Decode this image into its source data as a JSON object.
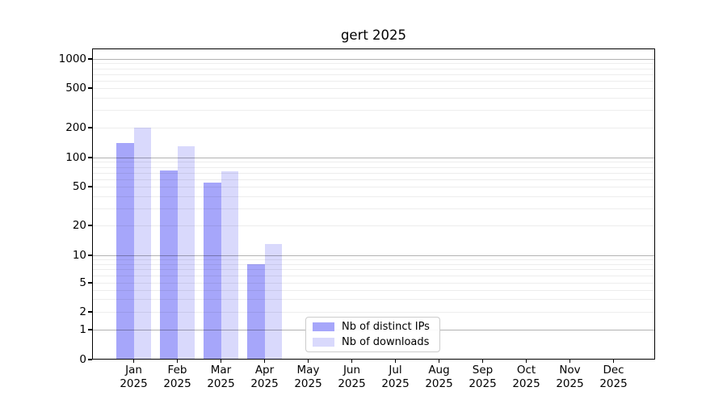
{
  "chart_data": {
    "type": "bar",
    "title": "gert 2025",
    "categories": [
      "Jan",
      "Feb",
      "Mar",
      "Apr",
      "May",
      "Jun",
      "Jul",
      "Aug",
      "Sep",
      "Oct",
      "Nov",
      "Dec"
    ],
    "x_tick_second_line": "2025",
    "series": [
      {
        "name": "Nb of distinct IPs",
        "color": "#a6a6fa",
        "values": [
          140,
          73,
          55,
          8,
          0,
          0,
          0,
          0,
          0,
          0,
          0,
          0
        ]
      },
      {
        "name": "Nb of downloads",
        "color": "#d9d9fc",
        "values": [
          200,
          130,
          72,
          13,
          0,
          0,
          0,
          0,
          0,
          0,
          0,
          0
        ]
      }
    ],
    "yscale": "symlog",
    "yticks": [
      0,
      1,
      2,
      5,
      10,
      20,
      50,
      100,
      200,
      500,
      1000
    ],
    "ylim": [
      0,
      1300
    ],
    "grid": "horizontal only; darker lines at decades 1,10,100,1000; faint minor lines between",
    "legend_position": "lower center inside plot",
    "colors": {
      "grid_major": "#b3b3b3",
      "grid_minor": "#ededed",
      "spine": "#000000",
      "background": "#ffffff",
      "legend_border": "#cccccc"
    }
  }
}
